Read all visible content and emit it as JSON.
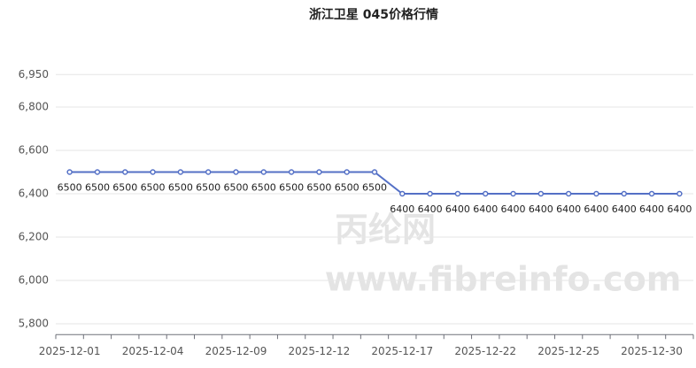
{
  "chart_data": {
    "type": "line",
    "title": "浙江卫星 045价格行情",
    "watermark": [
      "丙纶网",
      "www.fibreinfo.com"
    ],
    "categories": [
      "2025-12-01",
      null,
      null,
      "2025-12-04",
      null,
      null,
      "2025-12-09",
      null,
      null,
      "2025-12-12",
      null,
      null,
      "2025-12-17",
      null,
      null,
      "2025-12-22",
      null,
      null,
      "2025-12-25",
      null,
      null,
      "2025-12-30",
      null
    ],
    "series": [
      {
        "name": "浙江卫星 045",
        "color": "#5470c6",
        "values": [
          6500,
          6500,
          6500,
          6500,
          6500,
          6500,
          6500,
          6500,
          6500,
          6500,
          6500,
          6500,
          6400,
          6400,
          6400,
          6400,
          6400,
          6400,
          6400,
          6400,
          6400,
          6400,
          6400
        ]
      }
    ],
    "ylim": [
      5750,
      6950
    ],
    "yticks": [
      {
        "value": 5800,
        "label": "5,800"
      },
      {
        "value": 6000,
        "label": "6,000"
      },
      {
        "value": 6200,
        "label": "6,200"
      },
      {
        "value": 6400,
        "label": "6,400"
      },
      {
        "value": 6600,
        "label": "6,600"
      },
      {
        "value": 6800,
        "label": "6,800"
      },
      {
        "value": 6950,
        "label": "6,950"
      }
    ],
    "grid": true
  }
}
